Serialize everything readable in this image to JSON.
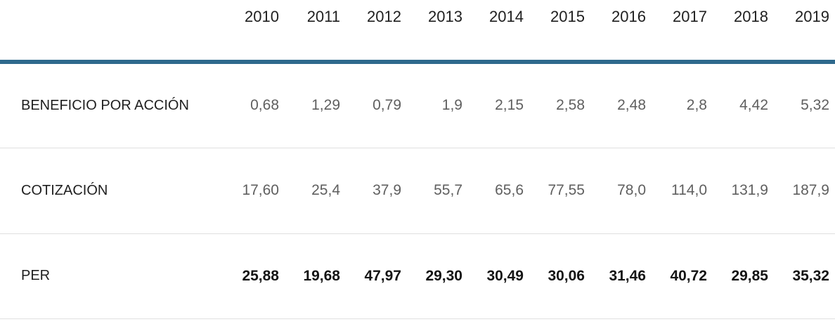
{
  "chart_data": {
    "type": "table",
    "columns": [
      "",
      "2010",
      "2011",
      "2012",
      "2013",
      "2014",
      "2015",
      "2016",
      "2017",
      "2018",
      "2019"
    ],
    "rows": [
      {
        "label": "BENEFICIO POR ACCIÓN",
        "values": [
          0.68,
          1.29,
          0.79,
          1.9,
          2.15,
          2.58,
          2.48,
          2.8,
          4.42,
          5.32
        ]
      },
      {
        "label": "COTIZACIÓN",
        "values": [
          17.6,
          25.4,
          37.9,
          55.7,
          65.6,
          77.55,
          78.0,
          114.0,
          131.9,
          187.9
        ]
      },
      {
        "label": "PER",
        "values": [
          25.88,
          19.68,
          47.97,
          29.3,
          30.49,
          30.06,
          31.46,
          40.72,
          29.85,
          35.32
        ]
      }
    ]
  },
  "table": {
    "years": [
      "2010",
      "2011",
      "2012",
      "2013",
      "2014",
      "2015",
      "2016",
      "2017",
      "2018",
      "2019"
    ],
    "rows": [
      {
        "label": "BENEFICIO POR ACCIÓN",
        "values": [
          "0,68",
          "1,29",
          "0,79",
          "1,9",
          "2,15",
          "2,58",
          "2,48",
          "2,8",
          "4,42",
          "5,32"
        ]
      },
      {
        "label": "COTIZACIÓN",
        "values": [
          "17,60",
          "25,4",
          "37,9",
          "55,7",
          "65,6",
          "77,55",
          "78,0",
          "114,0",
          "131,9",
          "187,9"
        ]
      },
      {
        "label": "PER",
        "values": [
          "25,88",
          "19,68",
          "47,97",
          "29,30",
          "30,49",
          "30,06",
          "31,46",
          "40,72",
          "29,85",
          "35,32"
        ]
      }
    ]
  },
  "colors": {
    "header_rule": "#2e698d",
    "row_divider": "#e0e0e0",
    "header_text": "#1f1f1f",
    "muted_value_text": "#5f5f5f",
    "emphasis_value_text": "#141414"
  }
}
